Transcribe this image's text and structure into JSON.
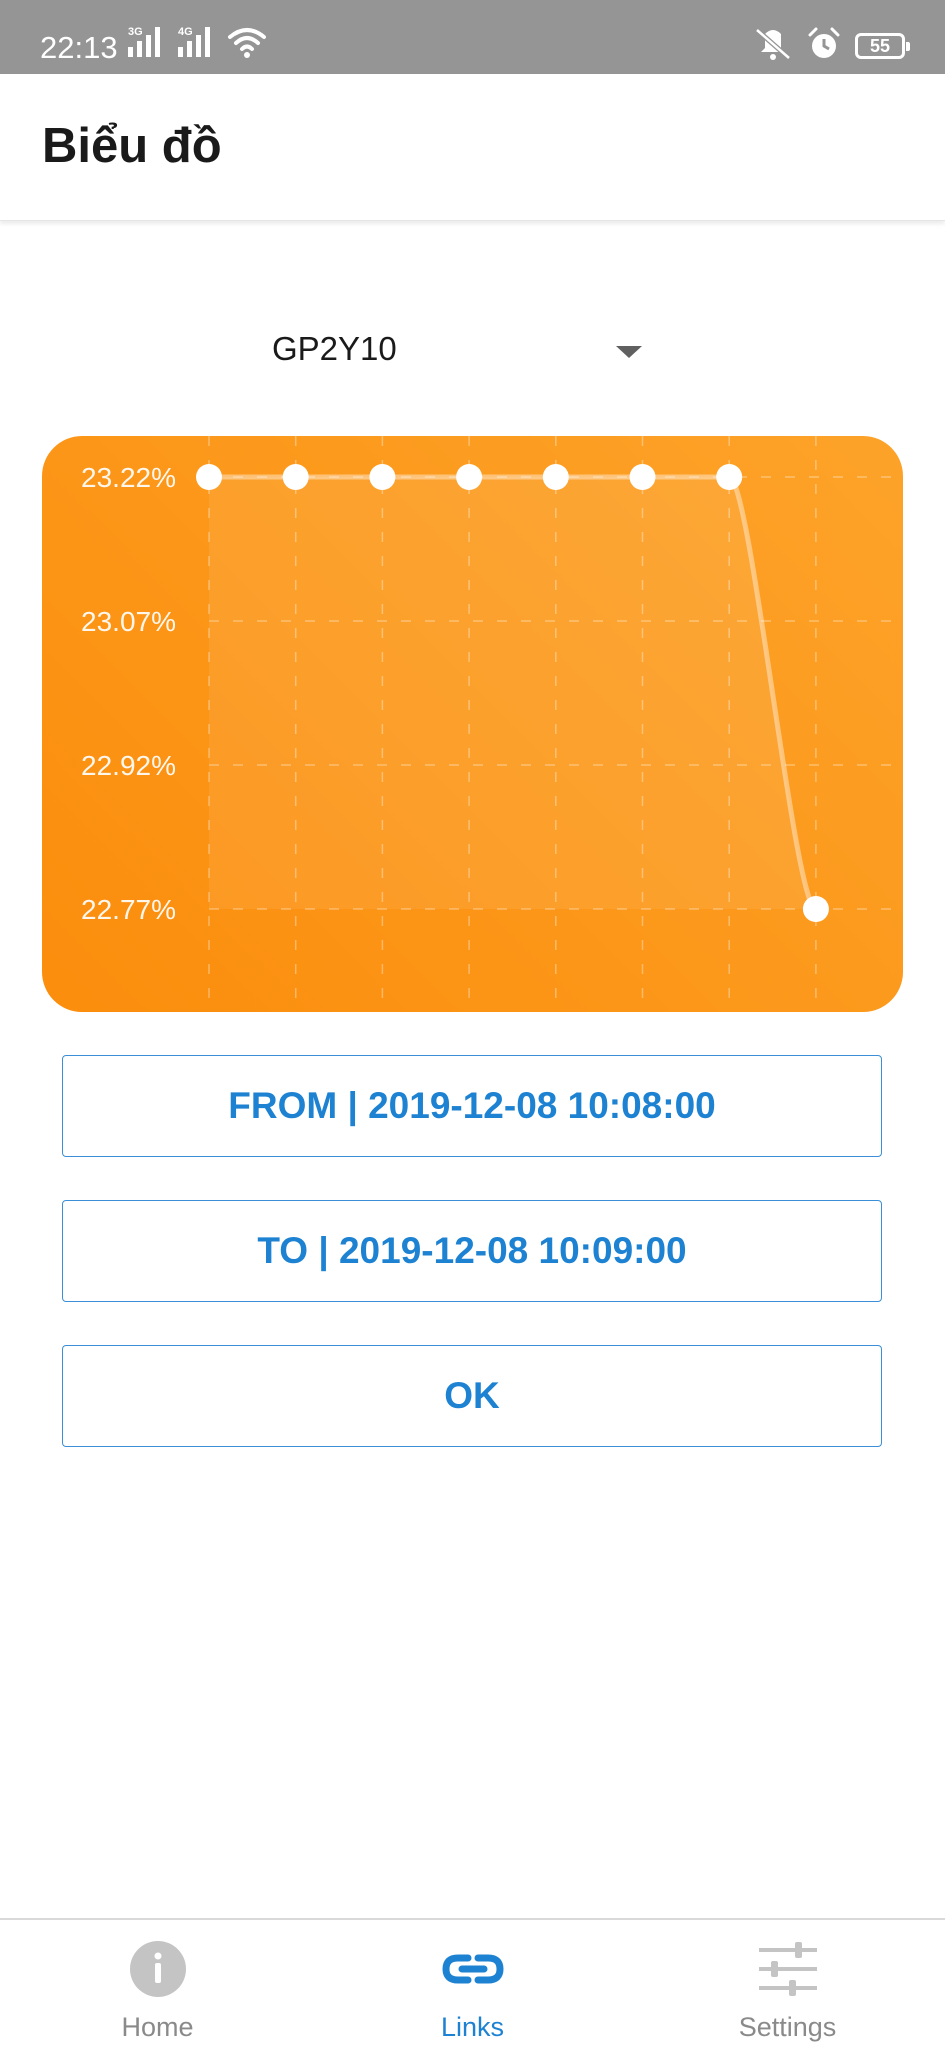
{
  "status_bar": {
    "time": "22:13",
    "signal_1": "3G",
    "signal_2": "4G",
    "battery": "55",
    "icons": [
      "signal-3g-icon",
      "signal-4g-icon",
      "wifi-icon",
      "mute-icon",
      "alarm-icon",
      "battery-icon"
    ]
  },
  "header": {
    "title": "Biểu đồ"
  },
  "sensor_select": {
    "value": "GP2Y10"
  },
  "chart_data": {
    "type": "line",
    "title": "",
    "xlabel": "",
    "ylabel": "",
    "y_tick_labels": [
      "23.22%",
      "23.07%",
      "22.92%",
      "22.77%"
    ],
    "y_ticks": [
      23.22,
      23.07,
      22.92,
      22.77
    ],
    "ylim": [
      22.77,
      23.22
    ],
    "x_labels": [],
    "series": [
      {
        "values": [
          23.22,
          23.22,
          23.22,
          23.22,
          23.22,
          23.22,
          23.22,
          22.77
        ]
      }
    ],
    "grid": true,
    "legend": "none",
    "colors": {
      "background_start": "#fb8d0c",
      "background_end": "#fda329",
      "line": "#ffffff",
      "point": "#ffffff"
    }
  },
  "buttons": {
    "from": "FROM | 2019-12-08 10:08:00",
    "to": "TO | 2019-12-08 10:09:00",
    "ok": "OK"
  },
  "tabs": [
    {
      "label": "Home",
      "icon": "info-icon",
      "active": false
    },
    {
      "label": "Links",
      "icon": "link-icon",
      "active": true
    },
    {
      "label": "Settings",
      "icon": "sliders-icon",
      "active": false
    }
  ],
  "colors": {
    "accent": "#1e82d2",
    "inactive": "#8a8a8a",
    "status_bar": "#959595"
  }
}
